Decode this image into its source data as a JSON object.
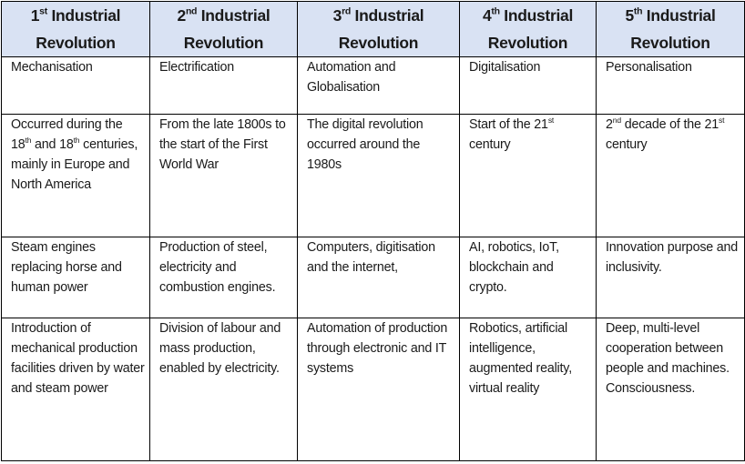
{
  "table": {
    "header_bg": "#d9e2f3",
    "headers": [
      [
        {
          "t": "1"
        },
        {
          "sup": "st"
        },
        {
          "t": " Industrial Revolution"
        }
      ],
      [
        {
          "t": "2"
        },
        {
          "sup": "nd"
        },
        {
          "t": " Industrial Revolution"
        }
      ],
      [
        {
          "t": "3"
        },
        {
          "sup": "rd"
        },
        {
          "t": " Industrial Revolution"
        }
      ],
      [
        {
          "t": "4"
        },
        {
          "sup": "th"
        },
        {
          "t": " Industrial Revolution"
        }
      ],
      [
        {
          "t": "5"
        },
        {
          "sup": "th"
        },
        {
          "t": " Industrial Revolution"
        }
      ]
    ],
    "rows": [
      [
        [
          {
            "t": "Mechanisation"
          }
        ],
        [
          {
            "t": "Electrification"
          }
        ],
        [
          {
            "t": "Automation and Globalisation"
          }
        ],
        [
          {
            "t": "Digitalisation"
          }
        ],
        [
          {
            "t": "Personalisation"
          }
        ]
      ],
      [
        [
          {
            "t": "Occurred during the 18"
          },
          {
            "sup": "th"
          },
          {
            "t": " and 18"
          },
          {
            "sup": "th"
          },
          {
            "t": " centuries, mainly in Europe and North America"
          }
        ],
        [
          {
            "t": "From the late 1800s to the start of the First World War"
          }
        ],
        [
          {
            "t": "The digital revolution occurred around the 1980s"
          }
        ],
        [
          {
            "t": "Start of the 21"
          },
          {
            "sup": "st"
          },
          {
            "t": " century"
          }
        ],
        [
          {
            "t": " 2"
          },
          {
            "sup": "nd"
          },
          {
            "t": " decade of the 21"
          },
          {
            "sup": "st"
          },
          {
            "t": " century"
          }
        ]
      ],
      [
        [
          {
            "t": "Steam engines replacing horse and human power"
          }
        ],
        [
          {
            "t": "Production of steel, electricity and combustion engines."
          }
        ],
        [
          {
            "t": "Computers, digitisation and the internet,"
          }
        ],
        [
          {
            "t": "AI, robotics, IoT, blockchain and crypto."
          }
        ],
        [
          {
            "t": "Innovation purpose and inclusivity."
          }
        ]
      ],
      [
        [
          {
            "t": "Introduction of mechanical production facilities driven by water and steam power"
          }
        ],
        [
          {
            "t": "Division of labour and mass production, enabled by electricity."
          }
        ],
        [
          {
            "t": "Automation of production through electronic and IT systems"
          }
        ],
        [
          {
            "t": "Robotics, artificial intelligence, augmented reality, virtual reality"
          }
        ],
        [
          {
            "t": "Deep, multi-level cooperation between people and machines. Consciousness."
          }
        ]
      ]
    ]
  }
}
